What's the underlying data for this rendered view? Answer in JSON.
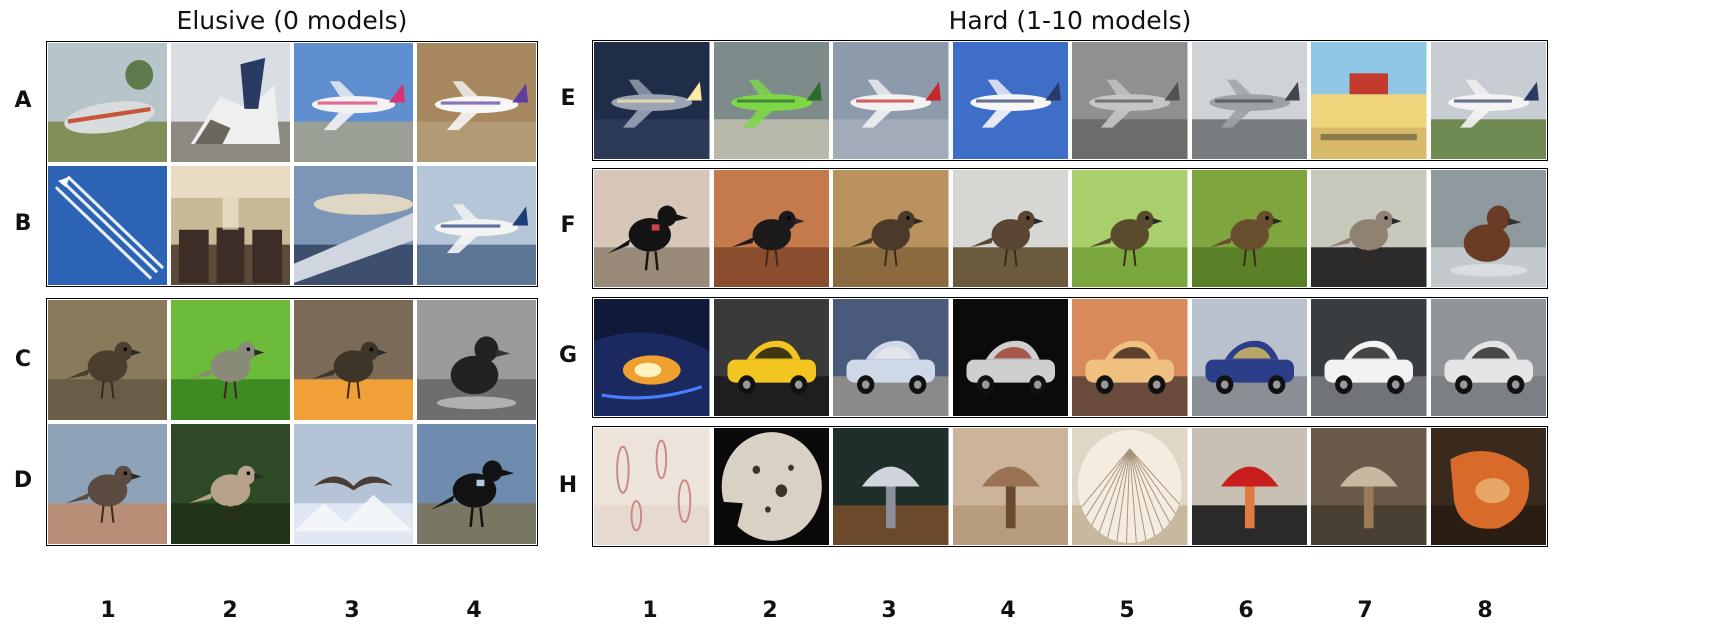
{
  "figure": {
    "left_title": "Elusive (0 models)",
    "right_title": "Hard (1-10 models)",
    "left_rows": [
      "A",
      "B",
      "C",
      "D"
    ],
    "right_rows": [
      "E",
      "F",
      "G",
      "H"
    ],
    "left_cols": [
      "1",
      "2",
      "3",
      "4"
    ],
    "right_cols": [
      "1",
      "2",
      "3",
      "4",
      "5",
      "6",
      "7",
      "8"
    ]
  },
  "groups": {
    "left_top": [
      "A",
      "B"
    ],
    "left_bottom": [
      "C",
      "D"
    ],
    "right": [
      "E",
      "F",
      "G",
      "H"
    ]
  },
  "tiles": {
    "A": [
      {
        "subject": "crashed-airplane",
        "icon": "crashed-plane-icon",
        "bg": "#b7c4c9",
        "ground": "#7f8f57",
        "accent": "#d8dcdc",
        "mark": "#c6553c"
      },
      {
        "subject": "plane-wreckage",
        "icon": "wreckage-icon",
        "bg": "#d9dee3",
        "ground": "#8c8a80",
        "accent": "#efefef",
        "mark": "#2a3b63"
      },
      {
        "subject": "colorful-airliner",
        "icon": "airliner-icon",
        "bg": "#5f8fd0",
        "ground": "#9aa095",
        "accent": "#f3f3f3",
        "mark": "#d9336f"
      },
      {
        "subject": "airliner-on-runway",
        "icon": "airliner-icon",
        "bg": "#a7885e",
        "ground": "#b29a74",
        "accent": "#f6f6f6",
        "mark": "#5a3fa0"
      }
    ],
    "B": [
      {
        "subject": "contrail-in-sky",
        "icon": "contrail-icon",
        "bg": "#2d63b4",
        "ground": "#2d63b4",
        "accent": "#ffffff",
        "mark": "#dfe8f5"
      },
      {
        "subject": "airplane-cabin",
        "icon": "cabin-icon",
        "bg": "#c9b996",
        "ground": "#5b4a3a",
        "accent": "#e8dcc2",
        "mark": "#3c2e26"
      },
      {
        "subject": "wing-over-clouds",
        "icon": "wing-icon",
        "bg": "#7d96b8",
        "ground": "#3e4f6e",
        "accent": "#c8d2de",
        "mark": "#f5e7c6"
      },
      {
        "subject": "two-jets-landing",
        "icon": "airliner-icon",
        "bg": "#b5c6d8",
        "ground": "#5c7594",
        "accent": "#f4f4f4",
        "mark": "#1d3c7a"
      }
    ],
    "C": [
      {
        "subject": "bird-in-grass",
        "icon": "bird-icon",
        "bg": "#8a7a5c",
        "ground": "#6a5d45",
        "accent": "#a59575",
        "mark": "#4a3f2e"
      },
      {
        "subject": "bird-in-leaves",
        "icon": "bird-icon",
        "bg": "#6cbb3b",
        "ground": "#3f8a22",
        "accent": "#a7d96a",
        "mark": "#8a8a78"
      },
      {
        "subject": "bird-with-oranges",
        "icon": "bird-icon",
        "bg": "#7b6a55",
        "ground": "#f0a036",
        "accent": "#f6c870",
        "mark": "#3d3528"
      },
      {
        "subject": "duckling-grayscale",
        "icon": "duck-icon",
        "bg": "#9a9a9a",
        "ground": "#6e6e6e",
        "accent": "#dcdcdc",
        "mark": "#222222"
      }
    ],
    "D": [
      {
        "subject": "bird-in-hand",
        "icon": "bird-icon",
        "bg": "#8fa3b8",
        "ground": "#b98e76",
        "accent": "#e6e6e6",
        "mark": "#5b4b40"
      },
      {
        "subject": "bird-on-branch",
        "icon": "bird-icon",
        "bg": "#2f4a26",
        "ground": "#1f3318",
        "accent": "#6b8c48",
        "mark": "#b7a28a"
      },
      {
        "subject": "bird-flying-over-mountains",
        "icon": "bird-flying-icon",
        "bg": "#b4c4d6",
        "ground": "#dfe8f2",
        "accent": "#f5f7fa",
        "mark": "#4a3c36"
      },
      {
        "subject": "crow-on-hill",
        "icon": "crow-icon",
        "bg": "#6f8bb0",
        "ground": "#7a7664",
        "accent": "#b7c7db",
        "mark": "#121212"
      }
    ],
    "E": [
      {
        "subject": "jet-night-landing",
        "icon": "airliner-icon",
        "bg": "#1f2d48",
        "ground": "#2a3a57",
        "accent": "#9aa4b5",
        "mark": "#ffe9a8"
      },
      {
        "subject": "green-airliner",
        "icon": "airliner-icon",
        "bg": "#7d8b8a",
        "ground": "#b8b8ab",
        "accent": "#7fd648",
        "mark": "#2a6b2a"
      },
      {
        "subject": "regional-jet",
        "icon": "airliner-icon",
        "bg": "#8c9aab",
        "ground": "#a2acb8",
        "accent": "#f2f2f2",
        "mark": "#c42727"
      },
      {
        "subject": "jet-blue-sky",
        "icon": "airliner-icon",
        "bg": "#3f6ec9",
        "ground": "#3f6ec9",
        "accent": "#f6f6f6",
        "mark": "#2a3a66"
      },
      {
        "subject": "jets-on-tarmac",
        "icon": "airliner-icon",
        "bg": "#8f9191",
        "ground": "#6b6d6a",
        "accent": "#c4c6c4",
        "mark": "#515350"
      },
      {
        "subject": "military-transport",
        "icon": "airliner-icon",
        "bg": "#cfd3d8",
        "ground": "#777c80",
        "accent": "#9ba1a6",
        "mark": "#40464b"
      },
      {
        "subject": "airport-hangar",
        "icon": "hangar-icon",
        "bg": "#8fc7e6",
        "ground": "#d9b96a",
        "accent": "#f0d47a",
        "mark": "#c43b2e"
      },
      {
        "subject": "airliner-taxiing",
        "icon": "airliner-icon",
        "bg": "#c7cdd3",
        "ground": "#6f8a52",
        "accent": "#f4f4f4",
        "mark": "#2a3b63"
      }
    ],
    "F": [
      {
        "subject": "crow-with-red-tag",
        "icon": "crow-icon",
        "bg": "#d8c7b8",
        "ground": "#9a8a7a",
        "accent": "#c94444",
        "mark": "#141414"
      },
      {
        "subject": "bird-closeup",
        "icon": "bird-icon",
        "bg": "#c47a4a",
        "ground": "#8a4d2d",
        "accent": "#e0a070",
        "mark": "#1c1a1a"
      },
      {
        "subject": "bird-on-dirt",
        "icon": "bird-icon",
        "bg": "#b9925e",
        "ground": "#8a6a3e",
        "accent": "#d8b888",
        "mark": "#4a3a2a"
      },
      {
        "subject": "bird-on-snow",
        "icon": "bird-icon",
        "bg": "#d6d6d2",
        "ground": "#6b5a3e",
        "accent": "#f4f4f2",
        "mark": "#5a4632"
      },
      {
        "subject": "bird-in-branches",
        "icon": "bird-icon",
        "bg": "#a8cf6b",
        "ground": "#7aa83e",
        "accent": "#d2e8a0",
        "mark": "#5a4a2e"
      },
      {
        "subject": "bird-on-reed",
        "icon": "bird-icon",
        "bg": "#7ea53e",
        "ground": "#5a8028",
        "accent": "#a8c86a",
        "mark": "#6a4e30"
      },
      {
        "subject": "bird-on-post",
        "icon": "bird-icon",
        "bg": "#c8c9bd",
        "ground": "#2a2a2a",
        "accent": "#e0e0d4",
        "mark": "#8f8272"
      },
      {
        "subject": "duck-in-water",
        "icon": "duck-icon",
        "bg": "#8f9a9e",
        "ground": "#c2cacd",
        "accent": "#e8edef",
        "mark": "#6a3c26"
      }
    ],
    "G": [
      {
        "subject": "car-headlight",
        "icon": "headlight-icon",
        "bg": "#0f1a3a",
        "ground": "#1a2a60",
        "accent": "#f0a030",
        "mark": "#4a7cff"
      },
      {
        "subject": "yellow-sports-car",
        "icon": "car-icon",
        "bg": "#3a3a3a",
        "ground": "#1e1e1e",
        "accent": "#f2c520",
        "mark": "#111111"
      },
      {
        "subject": "car-on-road",
        "icon": "car-icon",
        "bg": "#4a5a7a",
        "ground": "#8a8a8a",
        "accent": "#cfd8e6",
        "mark": "#e8e8e8"
      },
      {
        "subject": "silver-car-top-view",
        "icon": "car-icon",
        "bg": "#0b0b0b",
        "ground": "#0b0b0b",
        "accent": "#cfcfcf",
        "mark": "#9a3a2a"
      },
      {
        "subject": "sports-car-doors-open",
        "icon": "car-icon",
        "bg": "#d98a5a",
        "ground": "#6a4a3a",
        "accent": "#f0c080",
        "mark": "#3a2018"
      },
      {
        "subject": "blue-sports-car",
        "icon": "car-icon",
        "bg": "#b9c2cc",
        "ground": "#8a8f95",
        "accent": "#2c3e8a",
        "mark": "#e0c060"
      },
      {
        "subject": "white-convertibles",
        "icon": "car-icon",
        "bg": "#3a3d40",
        "ground": "#707478",
        "accent": "#f2f2f2",
        "mark": "#1a1a1a"
      },
      {
        "subject": "silver-wagon",
        "icon": "car-icon",
        "bg": "#8f9499",
        "ground": "#7b8085",
        "accent": "#e4e4e4",
        "mark": "#202020"
      }
    ],
    "H": [
      {
        "subject": "spores-microscopy",
        "icon": "spores-icon",
        "bg": "#ece3da",
        "ground": "#e6dad0",
        "accent": "#d8a8a0",
        "mark": "#c88a82"
      },
      {
        "subject": "spore-print-disc",
        "icon": "spore-print-icon",
        "bg": "#0a0a0a",
        "ground": "#0a0a0a",
        "accent": "#d9d2c4",
        "mark": "#3a342c"
      },
      {
        "subject": "thin-mushroom",
        "icon": "mushroom-icon",
        "bg": "#1f2e2a",
        "ground": "#6a4a2a",
        "accent": "#d0d4dc",
        "mark": "#8a8f9a"
      },
      {
        "subject": "mushroom-on-paper",
        "icon": "mushroom-icon",
        "bg": "#cbb49a",
        "ground": "#b89c7e",
        "accent": "#9a7452",
        "mark": "#6a4a30"
      },
      {
        "subject": "mushroom-gills",
        "icon": "gills-icon",
        "bg": "#e0d6c6",
        "ground": "#c8b89e",
        "accent": "#f4ece0",
        "mark": "#a8927a"
      },
      {
        "subject": "red-mushroom-cap",
        "icon": "mushroom-icon",
        "bg": "#c9c0b4",
        "ground": "#2a2a2a",
        "accent": "#c81e1e",
        "mark": "#e07a40"
      },
      {
        "subject": "tiny-mushroom-forest-floor",
        "icon": "mushroom-icon",
        "bg": "#6a5a4a",
        "ground": "#4a3f33",
        "accent": "#c8b8a0",
        "mark": "#9a7a58"
      },
      {
        "subject": "orange-fungus",
        "icon": "fungus-icon",
        "bg": "#3a2a1e",
        "ground": "#2a1e14",
        "accent": "#d86a2a",
        "mark": "#f0c080"
      }
    ]
  }
}
